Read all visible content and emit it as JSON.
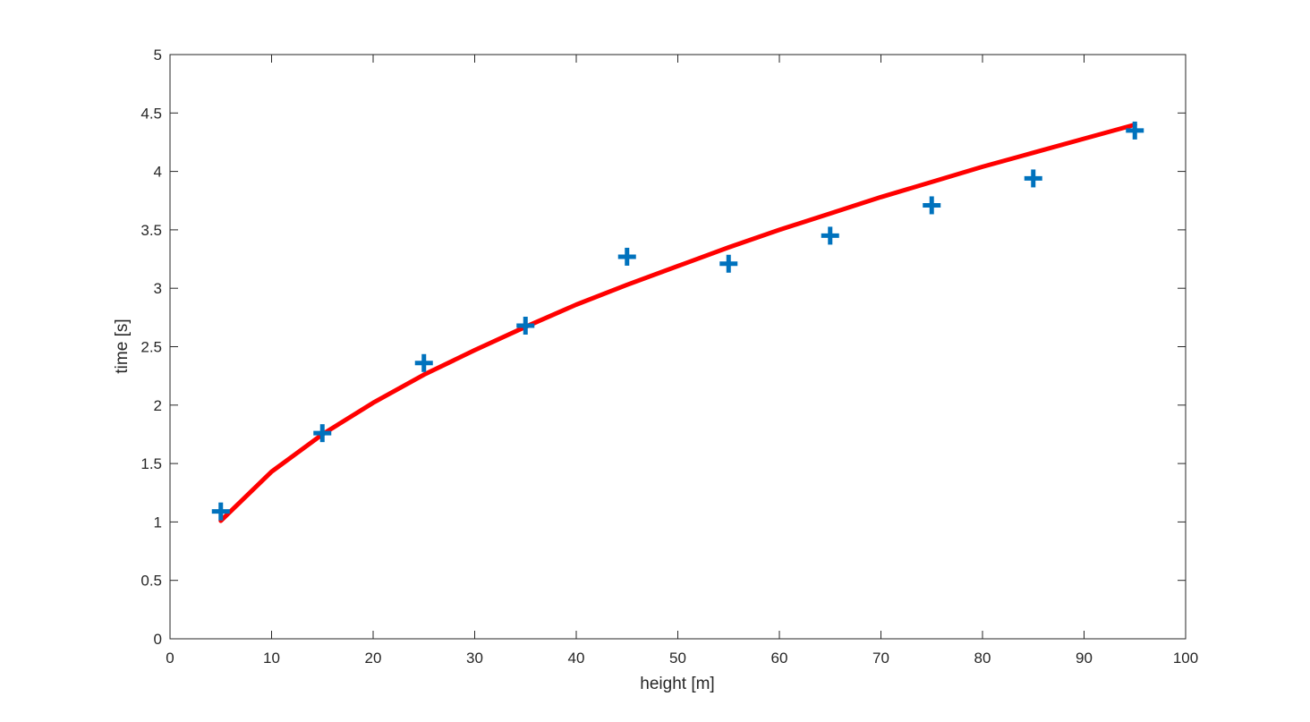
{
  "chart_data": {
    "type": "scatter",
    "xlabel": "height [m]",
    "ylabel": "time [s]",
    "xlim": [
      0,
      100
    ],
    "ylim": [
      0,
      5
    ],
    "xticks": [
      0,
      10,
      20,
      30,
      40,
      50,
      60,
      70,
      80,
      90,
      100
    ],
    "yticks": [
      0,
      0.5,
      1,
      1.5,
      2,
      2.5,
      3,
      3.5,
      4,
      4.5,
      5
    ],
    "xtick_labels": [
      "0",
      "10",
      "20",
      "30",
      "40",
      "50",
      "60",
      "70",
      "80",
      "90",
      "100"
    ],
    "ytick_labels": [
      "0",
      "0.5",
      "1",
      "1.5",
      "2",
      "2.5",
      "3",
      "3.5",
      "4",
      "4.5",
      "5"
    ],
    "grid": false,
    "series": [
      {
        "marker": "plus",
        "color": "#0072BD",
        "x": [
          5,
          15,
          25,
          35,
          45,
          55,
          65,
          75,
          85,
          95
        ],
        "y": [
          1.09,
          1.76,
          2.36,
          2.68,
          3.27,
          3.21,
          3.45,
          3.71,
          3.94,
          4.35
        ]
      },
      {
        "style": "line",
        "color": "#FF0000",
        "x": [
          5,
          10,
          15,
          20,
          25,
          30,
          35,
          40,
          45,
          50,
          55,
          60,
          65,
          70,
          75,
          80,
          85,
          90,
          95
        ],
        "y": [
          1.01,
          1.43,
          1.75,
          2.02,
          2.26,
          2.47,
          2.67,
          2.86,
          3.03,
          3.19,
          3.35,
          3.5,
          3.64,
          3.78,
          3.91,
          4.04,
          4.16,
          4.28,
          4.4
        ]
      }
    ]
  }
}
